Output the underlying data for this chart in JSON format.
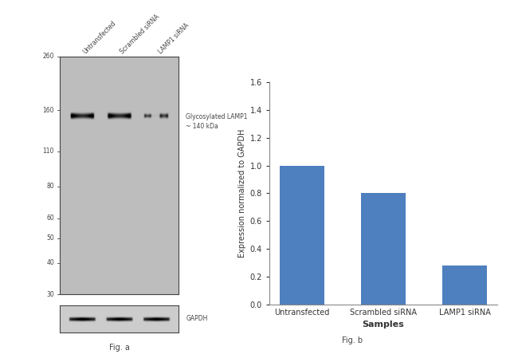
{
  "bar_categories": [
    "Untransfected",
    "Scrambled siRNA",
    "LAMP1 siRNA"
  ],
  "bar_values": [
    1.0,
    0.8,
    0.28
  ],
  "bar_color": "#4E7FBE",
  "bar_ylabel": "Expression normalized to GAPDH",
  "bar_xlabel": "Samples",
  "bar_ylim": [
    0,
    1.6
  ],
  "bar_yticks": [
    0,
    0.2,
    0.4,
    0.6,
    0.8,
    1.0,
    1.2,
    1.4,
    1.6
  ],
  "fig_b_label": "Fig. b",
  "fig_a_label": "Fig. a",
  "wb_background": "#bebebe",
  "wb_band_color": "#0a0a0a",
  "wb_gapdh_background": "#d0d0d0",
  "wb_marker_labels": [
    "260",
    "160",
    "110",
    "80",
    "60",
    "50",
    "40",
    "30"
  ],
  "wb_annotation_text": "Glycosylated LAMP1\n~ 140 kDa",
  "wb_gapdh_label": "GAPDH",
  "wb_lane_labels": [
    "Untransfected",
    "Scrambled siRNA",
    "LAMP1 siRNA"
  ],
  "background_color": "#ffffff"
}
